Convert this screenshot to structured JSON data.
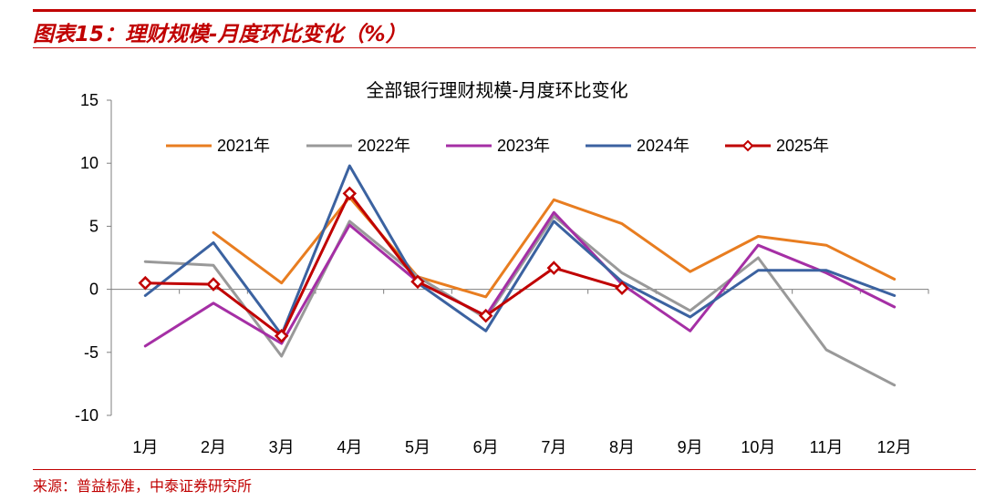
{
  "figure": {
    "title": "图表15：理财规模-月度环比变化（%）",
    "source": "来源：普益标准，中泰证券研究所"
  },
  "colors": {
    "accent": "#c00000",
    "s2021": "#e87d20",
    "s2022": "#999999",
    "s2023": "#a52fa5",
    "s2024": "#3b62a0",
    "s2025": "#c00000"
  },
  "chart_data": {
    "type": "line",
    "title": "全部银行理财规模-月度环比变化",
    "xlabel": "",
    "ylabel": "",
    "ylim": [
      -10,
      15
    ],
    "yticks": [
      -10,
      -5,
      0,
      5,
      10,
      15
    ],
    "ytick_labels": [
      "-10",
      "-5",
      "0",
      "5",
      "10",
      "15"
    ],
    "categories": [
      "1月",
      "2月",
      "3月",
      "4月",
      "5月",
      "6月",
      "7月",
      "8月",
      "9月",
      "10月",
      "11月",
      "12月"
    ],
    "legend_position": "top",
    "series": [
      {
        "name": "2021年",
        "color": "#e87d20",
        "marker": false,
        "values": [
          null,
          4.5,
          0.5,
          7.3,
          1.0,
          -0.6,
          7.1,
          5.2,
          1.4,
          4.2,
          3.5,
          0.8
        ]
      },
      {
        "name": "2022年",
        "color": "#999999",
        "marker": false,
        "values": [
          2.2,
          1.9,
          -5.3,
          5.4,
          1.0,
          -2.3,
          5.8,
          1.3,
          -1.7,
          2.5,
          -4.8,
          -7.6
        ]
      },
      {
        "name": "2023年",
        "color": "#a52fa5",
        "marker": false,
        "values": [
          -4.5,
          -1.1,
          -4.3,
          5.1,
          0.6,
          -2.1,
          6.1,
          0.4,
          -3.3,
          3.5,
          1.3,
          -1.4
        ]
      },
      {
        "name": "2024年",
        "color": "#3b62a0",
        "marker": false,
        "values": [
          -0.5,
          3.7,
          -3.6,
          9.8,
          0.5,
          -3.3,
          5.4,
          0.6,
          -2.2,
          1.5,
          1.5,
          -0.5
        ]
      },
      {
        "name": "2025年",
        "color": "#c00000",
        "marker": true,
        "values": [
          0.5,
          0.4,
          -3.7,
          7.6,
          0.6,
          -2.1,
          1.7,
          0.1,
          null,
          null,
          null,
          null
        ]
      }
    ]
  }
}
